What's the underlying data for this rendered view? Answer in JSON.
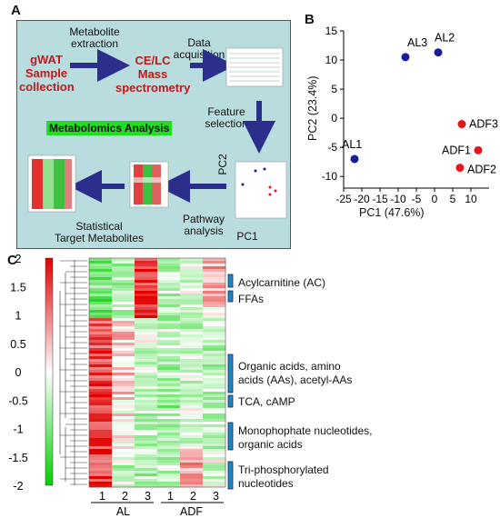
{
  "panels": {
    "a": "A",
    "b": "B",
    "c": "C"
  },
  "workflow": {
    "sample": [
      "gWAT",
      "Sample",
      "collection"
    ],
    "extraction": [
      "Metabolite",
      "extraction"
    ],
    "ms": [
      "CE/LC",
      "Mass",
      "spectrometry"
    ],
    "acquisition": [
      "Data",
      "acquisition"
    ],
    "feature": [
      "Feature",
      "selection"
    ],
    "analysis": "Metabolomics Analysis",
    "statistical": [
      "Statistical",
      "Target Metabolites"
    ],
    "pathway": [
      "Pathway",
      "analysis"
    ],
    "pc1": "PC1",
    "pc2": "PC2"
  },
  "chart_data": [
    {
      "type": "scatter",
      "xlabel": "PC1 (47.6%)",
      "ylabel": "PC2 (23.4%)",
      "xlim": [
        -25,
        15
      ],
      "ylim": [
        -12,
        15
      ],
      "xticks": [
        -25,
        -20,
        -15,
        -10,
        -5,
        0,
        5,
        10
      ],
      "yticks": [
        15,
        10,
        5,
        0,
        -5,
        -10
      ],
      "points": [
        {
          "label": "AL1",
          "x": -22,
          "y": -7,
          "group": "AL"
        },
        {
          "label": "AL3",
          "x": -8,
          "y": 10.5,
          "group": "AL"
        },
        {
          "label": "AL2",
          "x": 1,
          "y": 11.3,
          "group": "AL"
        },
        {
          "label": "ADF3",
          "x": 7.5,
          "y": -1,
          "group": "ADF"
        },
        {
          "label": "ADF1",
          "x": 12,
          "y": -5.5,
          "group": "ADF"
        },
        {
          "label": "ADF2",
          "x": 7,
          "y": -8.5,
          "group": "ADF"
        }
      ],
      "colors": {
        "AL": "#1a1a9e",
        "ADF": "#e8161b"
      }
    },
    {
      "type": "heatmap",
      "scale": {
        "min": -2,
        "max": 2,
        "ticks": [
          "2",
          "1.5",
          "1",
          "0.5",
          "0",
          "-0.5",
          "-1",
          "-1.5",
          "-2"
        ],
        "low": "#00d000",
        "mid": "#ffffff",
        "high": "#e00000"
      },
      "columns": [
        "1",
        "2",
        "3",
        "1",
        "2",
        "3"
      ],
      "groups": [
        "AL",
        "ADF"
      ],
      "blocks": [
        {
          "label": "Acylcarnitine (AC)",
          "profile": [
            -1,
            -0.6,
            1.6,
            -0.5,
            -0.3,
            0.6
          ]
        },
        {
          "label": "FFAs",
          "profile": [
            -1.1,
            -0.4,
            1.8,
            -0.6,
            -0.2,
            0.4
          ]
        },
        {
          "label": "Organic acids, amino acids (AAs), acetyl-AAs",
          "profile": [
            1.4,
            0.4,
            -0.3,
            -0.6,
            -0.4,
            -0.5
          ]
        },
        {
          "label": "TCA, cAMP",
          "profile": [
            1.7,
            0.2,
            -0.5,
            -0.7,
            -0.3,
            -0.4
          ]
        },
        {
          "label": "Monophophate nucleotides, organic acids",
          "profile": [
            1.6,
            0.1,
            -0.4,
            -0.6,
            -0.2,
            -0.5
          ]
        },
        {
          "label": "Tri-phosphorylated nucleotides",
          "profile": [
            1.5,
            -0.4,
            -0.6,
            -0.5,
            0.8,
            -0.2
          ]
        }
      ]
    }
  ],
  "heatmap_labels": {
    "ac": "Acylcarnitine (AC)",
    "ffa": "FFAs",
    "org1": "Organic acids, amino",
    "org2": "acids (AAs), acetyl-AAs",
    "tca": "TCA, cAMP",
    "mono1": "Monophophate nucleotides,",
    "mono2": "organic acids",
    "tri1": "Tri-phosphorylated",
    "tri2": "nucleotides"
  }
}
